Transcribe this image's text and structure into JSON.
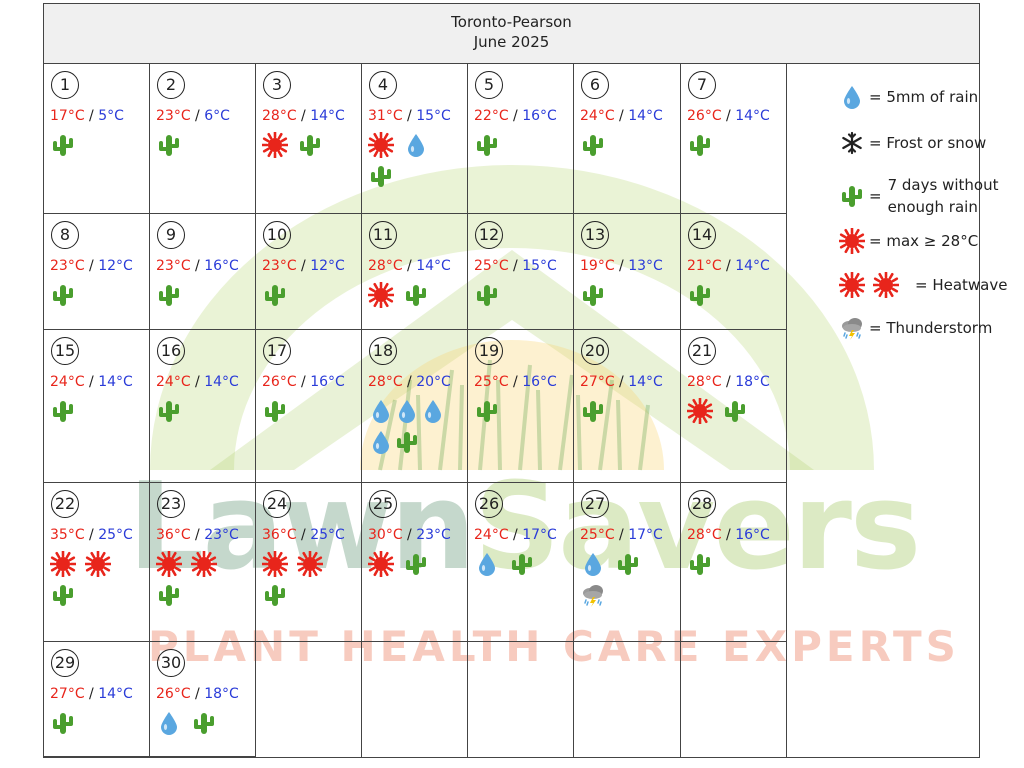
{
  "header": {
    "station": "Toronto-Pearson",
    "month": "June 2025"
  },
  "colors": {
    "max_temp": "#e8251b",
    "min_temp": "#2a3bd8",
    "cactus": "#4a9e2e",
    "sun": "#e8251b",
    "rain": "#5aa7e0"
  },
  "days": [
    {
      "day": "1",
      "max": "17°C",
      "min": "5°C",
      "icons": [
        "cactus"
      ]
    },
    {
      "day": "2",
      "max": "23°C",
      "min": "6°C",
      "icons": [
        "cactus"
      ]
    },
    {
      "day": "3",
      "max": "28°C",
      "min": "14°C",
      "icons": [
        "sun",
        "cactus"
      ]
    },
    {
      "day": "4",
      "max": "31°C",
      "min": "15°C",
      "icons": [
        "sun",
        "rain",
        "cactus"
      ]
    },
    {
      "day": "5",
      "max": "22°C",
      "min": "16°C",
      "icons": [
        "cactus"
      ]
    },
    {
      "day": "6",
      "max": "24°C",
      "min": "14°C",
      "icons": [
        "cactus"
      ]
    },
    {
      "day": "7",
      "max": "26°C",
      "min": "14°C",
      "icons": [
        "cactus"
      ]
    },
    {
      "day": "8",
      "max": "23°C",
      "min": "12°C",
      "icons": [
        "cactus"
      ]
    },
    {
      "day": "9",
      "max": "23°C",
      "min": "16°C",
      "icons": [
        "cactus"
      ]
    },
    {
      "day": "10",
      "max": "23°C",
      "min": "12°C",
      "icons": [
        "cactus"
      ]
    },
    {
      "day": "11",
      "max": "28°C",
      "min": "14°C",
      "icons": [
        "sun",
        "cactus"
      ]
    },
    {
      "day": "12",
      "max": "25°C",
      "min": "15°C",
      "icons": [
        "cactus"
      ]
    },
    {
      "day": "13",
      "max": "19°C",
      "min": "13°C",
      "icons": [
        "cactus"
      ]
    },
    {
      "day": "14",
      "max": "21°C",
      "min": "14°C",
      "icons": [
        "cactus"
      ]
    },
    {
      "day": "15",
      "max": "24°C",
      "min": "14°C",
      "icons": [
        "cactus"
      ]
    },
    {
      "day": "16",
      "max": "24°C",
      "min": "14°C",
      "icons": [
        "cactus"
      ]
    },
    {
      "day": "17",
      "max": "26°C",
      "min": "16°C",
      "icons": [
        "cactus"
      ]
    },
    {
      "day": "18",
      "max": "28°C",
      "min": "20°C",
      "icons": [
        "rain",
        "rain",
        "rain",
        "rain",
        "cactus"
      ]
    },
    {
      "day": "19",
      "max": "25°C",
      "min": "16°C",
      "icons": [
        "cactus"
      ]
    },
    {
      "day": "20",
      "max": "27°C",
      "min": "14°C",
      "icons": [
        "cactus"
      ]
    },
    {
      "day": "21",
      "max": "28°C",
      "min": "18°C",
      "icons": [
        "sun",
        "cactus"
      ]
    },
    {
      "day": "22",
      "max": "35°C",
      "min": "25°C",
      "icons": [
        "sun",
        "sun",
        "cactus"
      ]
    },
    {
      "day": "23",
      "max": "36°C",
      "min": "23°C",
      "icons": [
        "sun",
        "sun",
        "cactus"
      ]
    },
    {
      "day": "24",
      "max": "36°C",
      "min": "25°C",
      "icons": [
        "sun",
        "sun",
        "cactus"
      ]
    },
    {
      "day": "25",
      "max": "30°C",
      "min": "23°C",
      "icons": [
        "sun",
        "cactus"
      ]
    },
    {
      "day": "26",
      "max": "24°C",
      "min": "17°C",
      "icons": [
        "rain",
        "cactus"
      ]
    },
    {
      "day": "27",
      "max": "25°C",
      "min": "17°C",
      "icons": [
        "rain",
        "cactus",
        "thunderstorm"
      ]
    },
    {
      "day": "28",
      "max": "28°C",
      "min": "16°C",
      "icons": [
        "cactus"
      ]
    },
    {
      "day": "29",
      "max": "27°C",
      "min": "14°C",
      "icons": [
        "cactus"
      ]
    },
    {
      "day": "30",
      "max": "26°C",
      "min": "18°C",
      "icons": [
        "rain",
        "cactus"
      ]
    }
  ],
  "legend": [
    {
      "icons": [
        "rain"
      ],
      "text": "= 5mm of rain"
    },
    {
      "icons": [
        "snow"
      ],
      "text": "= Frost or snow"
    },
    {
      "icons": [
        "cactus"
      ],
      "text": "=",
      "text2": "7 days without",
      "text3": "enough rain"
    },
    {
      "icons": [
        "sun"
      ],
      "text": "= max ≥ 28°C"
    },
    {
      "icons": [
        "sun",
        "sun"
      ],
      "text": "= Heatwave"
    },
    {
      "icons": [
        "thunderstorm"
      ],
      "text": "= Thunderstorm"
    }
  ],
  "watermark": {
    "brand_part1": "Lawn",
    "brand_part2": "Savers",
    "tagline": "PLANT HEALTH CARE EXPERTS"
  }
}
